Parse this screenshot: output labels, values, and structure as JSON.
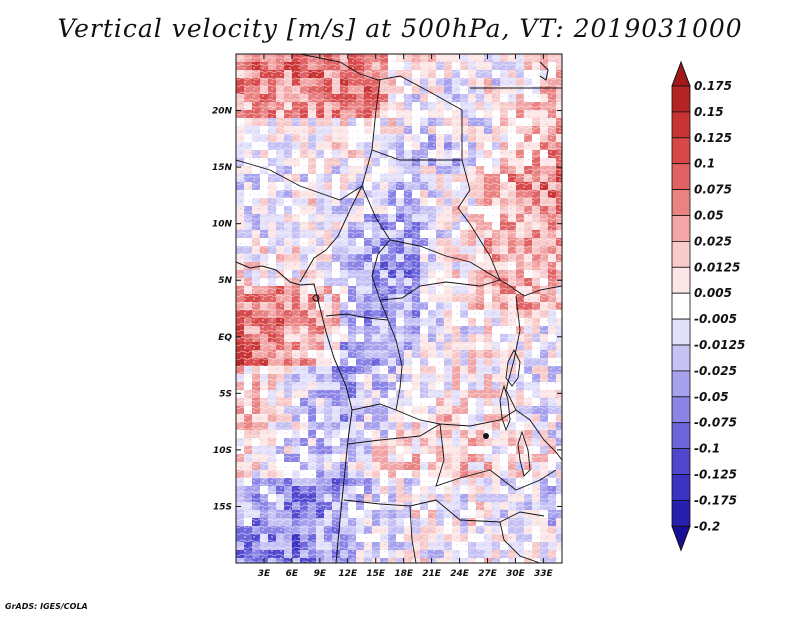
{
  "chart_data": {
    "type": "heatmap",
    "title": "Vertical velocity [m/s] at 500hPa, VT: 2019031000",
    "variable": "Vertical velocity",
    "units": "m/s",
    "level": "500hPa",
    "valid_time": "2019031000",
    "x_axis": {
      "ticks": [
        "3E",
        "6E",
        "9E",
        "12E",
        "15E",
        "18E",
        "21E",
        "24E",
        "27E",
        "30E",
        "33E"
      ],
      "tick_values": [
        3,
        6,
        9,
        12,
        15,
        18,
        21,
        24,
        27,
        30,
        33
      ],
      "range": [
        0,
        35
      ]
    },
    "y_axis": {
      "ticks": [
        "20N",
        "15N",
        "10N",
        "5N",
        "EQ",
        "5S",
        "10S",
        "15S"
      ],
      "tick_values": [
        20,
        15,
        10,
        5,
        0,
        -5,
        -10,
        -15
      ],
      "range": [
        -20,
        25
      ]
    },
    "colorbar": {
      "labels": [
        "0.175",
        "0.15",
        "0.125",
        "0.1",
        "0.075",
        "0.05",
        "0.025",
        "0.0125",
        "0.005",
        "-0.005",
        "-0.0125",
        "-0.025",
        "-0.05",
        "-0.075",
        "-0.1",
        "-0.125",
        "-0.175",
        "-0.2"
      ],
      "colors": [
        "#a01818",
        "#b52424",
        "#c83434",
        "#d84848",
        "#e06262",
        "#ea8282",
        "#f2a6a6",
        "#f8caca",
        "#fde6e6",
        "#ffffff",
        "#e2e0fb",
        "#c6c2f5",
        "#a7a2ee",
        "#8a84e6",
        "#6c66dc",
        "#4f48cf",
        "#3a32c0",
        "#271fae",
        "#170f96"
      ],
      "orientation": "vertical",
      "placement": "right"
    }
  },
  "footer": "GrADS: IGES/COLA"
}
